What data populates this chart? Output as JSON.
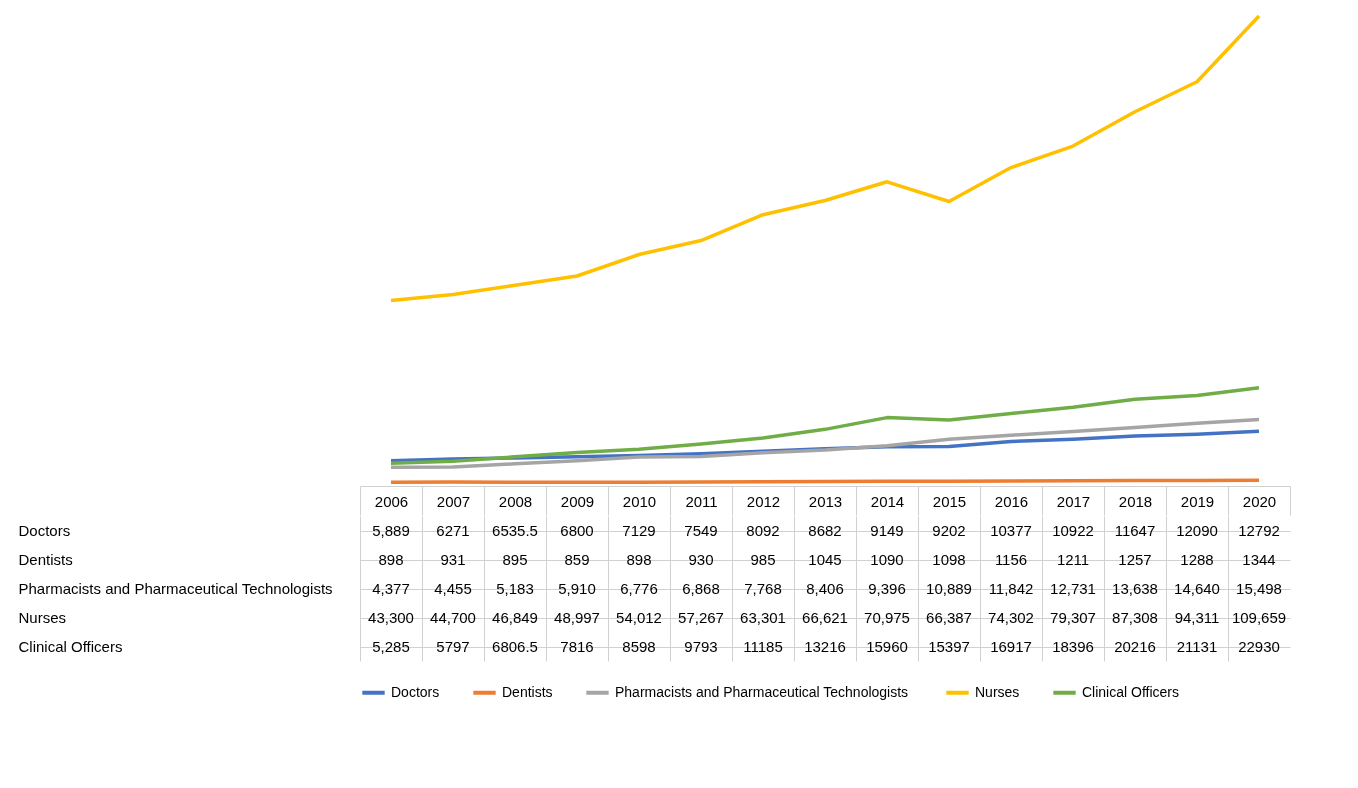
{
  "chart_data": {
    "type": "line",
    "categories": [
      "2006",
      "2007",
      "2008",
      "2009",
      "2010",
      "2011",
      "2012",
      "2013",
      "2014",
      "2015",
      "2016",
      "2017",
      "2018",
      "2019",
      "2020"
    ],
    "series": [
      {
        "name": "Doctors",
        "color": "#4472c4",
        "values": [
          5889,
          6271,
          6535.5,
          6800,
          7129,
          7549,
          8092,
          8682,
          9149,
          9202,
          10377,
          10922,
          11647,
          12090,
          12792
        ],
        "value_labels": [
          "5,889",
          "6271",
          "6535.5",
          "6800",
          "7129",
          "7549",
          "8092",
          "8682",
          "9149",
          "9202",
          "10377",
          "10922",
          "11647",
          "12090",
          "12792"
        ]
      },
      {
        "name": "Dentists",
        "color": "#ed7d31",
        "values": [
          898,
          931,
          895,
          859,
          898,
          930,
          985,
          1045,
          1090,
          1098,
          1156,
          1211,
          1257,
          1288,
          1344
        ],
        "value_labels": [
          "898",
          "931",
          "895",
          "859",
          "898",
          "930",
          "985",
          "1045",
          "1090",
          "1098",
          "1156",
          "1211",
          "1257",
          "1288",
          "1344"
        ]
      },
      {
        "name": "Pharmacists and Pharmaceutical  Technologists",
        "color": "#a5a5a5",
        "values": [
          4377,
          4455,
          5183,
          5910,
          6776,
          6868,
          7768,
          8406,
          9396,
          10889,
          11842,
          12731,
          13638,
          14640,
          15498
        ],
        "value_labels": [
          "4,377",
          "4,455",
          "5,183",
          "5,910",
          "6,776",
          "6,868",
          "7,768",
          "8,406",
          "9,396",
          "10,889",
          "11,842",
          "12,731",
          "13,638",
          "14,640",
          "15,498"
        ]
      },
      {
        "name": "Nurses",
        "color": "#ffc000",
        "values": [
          43300,
          44700,
          46849,
          48997,
          54012,
          57267,
          63301,
          66621,
          70975,
          66387,
          74302,
          79307,
          87308,
          94311,
          109659
        ],
        "value_labels": [
          "43,300",
          "44,700",
          "46,849",
          "48,997",
          "54,012",
          "57,267",
          "63,301",
          "66,621",
          "70,975",
          "66,387",
          "74,302",
          "79,307",
          "87,308",
          "94,311",
          "109,659"
        ]
      },
      {
        "name": "Clinical Officers",
        "color": "#70ad47",
        "values": [
          5285,
          5797,
          6806.5,
          7816,
          8598,
          9793,
          11185,
          13216,
          15960,
          15397,
          16917,
          18396,
          20216,
          21131,
          22930
        ],
        "value_labels": [
          "5,285",
          "5797",
          "6806.5",
          "7816",
          "8598",
          "9793",
          "11185",
          "13216",
          "15960",
          "15397",
          "16917",
          "18396",
          "20216",
          "21131",
          "22930"
        ]
      }
    ],
    "legend": "bottom",
    "grid": false,
    "marker": "none",
    "line_style": "solid"
  }
}
